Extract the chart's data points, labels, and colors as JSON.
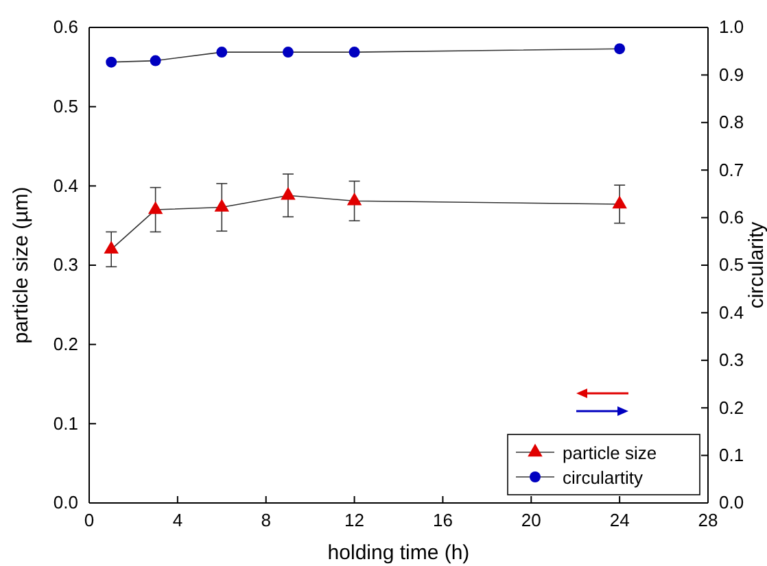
{
  "chart_data": {
    "type": "line",
    "xlabel": "holding time (h)",
    "ylabel": "particle size (µm)",
    "y2label": "circularity",
    "x": [
      1,
      3,
      6,
      9,
      12,
      24
    ],
    "xlim": [
      0,
      28
    ],
    "xticks": [
      0,
      4,
      8,
      12,
      16,
      20,
      24,
      28
    ],
    "ylim": [
      0,
      0.6
    ],
    "yticks": [
      {
        "value": 0,
        "label": "0.0"
      },
      0.1,
      0.2,
      0.3,
      0.4,
      0.5,
      0.6
    ],
    "y2lim": [
      0,
      1
    ],
    "y2ticks": [
      {
        "value": 0,
        "label": "0.0"
      },
      0.1,
      0.2,
      0.3,
      0.4,
      0.5,
      0.6,
      0.7,
      0.8,
      0.9,
      {
        "value": 1,
        "label": "1.0"
      }
    ],
    "legend": "bottom right",
    "line_style": "solid",
    "series": [
      {
        "name": "particle size",
        "color": "#e00000",
        "marker": "triangle",
        "values": [
          0.32,
          0.37,
          0.373,
          0.388,
          0.381,
          0.377
        ],
        "errors": [
          0.022,
          0.028,
          0.03,
          0.027,
          0.025,
          0.024
        ]
      },
      {
        "name": "circulartity",
        "color": "#0000c0",
        "marker": "circle",
        "axis": "y2",
        "values": [
          0.927,
          0.93,
          0.948,
          0.948,
          0.948,
          0.955
        ]
      }
    ]
  }
}
